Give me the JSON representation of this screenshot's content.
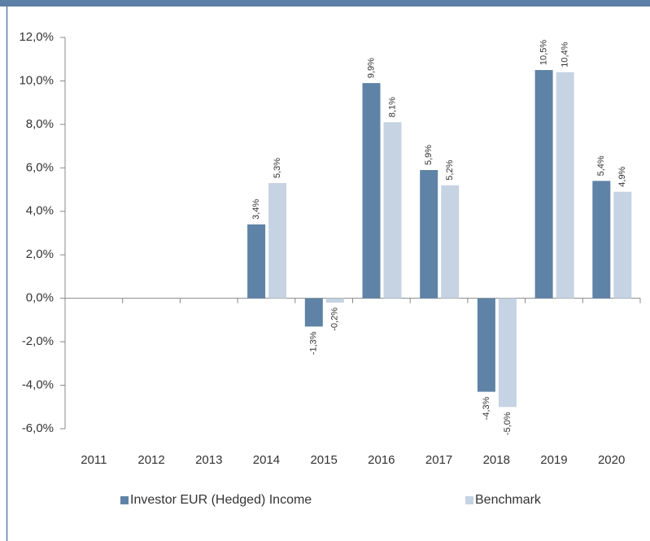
{
  "chart_data": {
    "type": "bar",
    "categories": [
      "2011",
      "2012",
      "2013",
      "2014",
      "2015",
      "2016",
      "2017",
      "2018",
      "2019",
      "2020"
    ],
    "series": [
      {
        "name": "Investor EUR (Hedged) Income",
        "color": "#5f83a6",
        "values": [
          null,
          null,
          null,
          3.4,
          -1.3,
          9.9,
          5.9,
          -4.3,
          10.5,
          5.4
        ],
        "value_labels": [
          null,
          null,
          null,
          "3,4%",
          "-1,3%",
          "9,9%",
          "5,9%",
          "-4,3%",
          "10,5%",
          "5,4%"
        ]
      },
      {
        "name": "Benchmark",
        "color": "#c5d3e3",
        "values": [
          null,
          null,
          null,
          5.3,
          -0.2,
          8.1,
          5.2,
          -5.0,
          10.4,
          4.9
        ],
        "value_labels": [
          null,
          null,
          null,
          "5,3%",
          "-0,2%",
          "8,1%",
          "5,2%",
          "-5,0%",
          "10,4%",
          "4,9%"
        ]
      }
    ],
    "ylim": [
      -6,
      12
    ],
    "yticks": [
      {
        "value": -6,
        "label": "-6,0%"
      },
      {
        "value": -4,
        "label": "-4,0%"
      },
      {
        "value": -2,
        "label": "-2,0%"
      },
      {
        "value": 0,
        "label": "0,0%"
      },
      {
        "value": 2,
        "label": "2,0%"
      },
      {
        "value": 4,
        "label": "4,0%"
      },
      {
        "value": 6,
        "label": "6,0%"
      },
      {
        "value": 8,
        "label": "8,0%"
      },
      {
        "value": 10,
        "label": "10,0%"
      },
      {
        "value": 12,
        "label": "12,0%"
      }
    ],
    "legend": "bottom"
  }
}
